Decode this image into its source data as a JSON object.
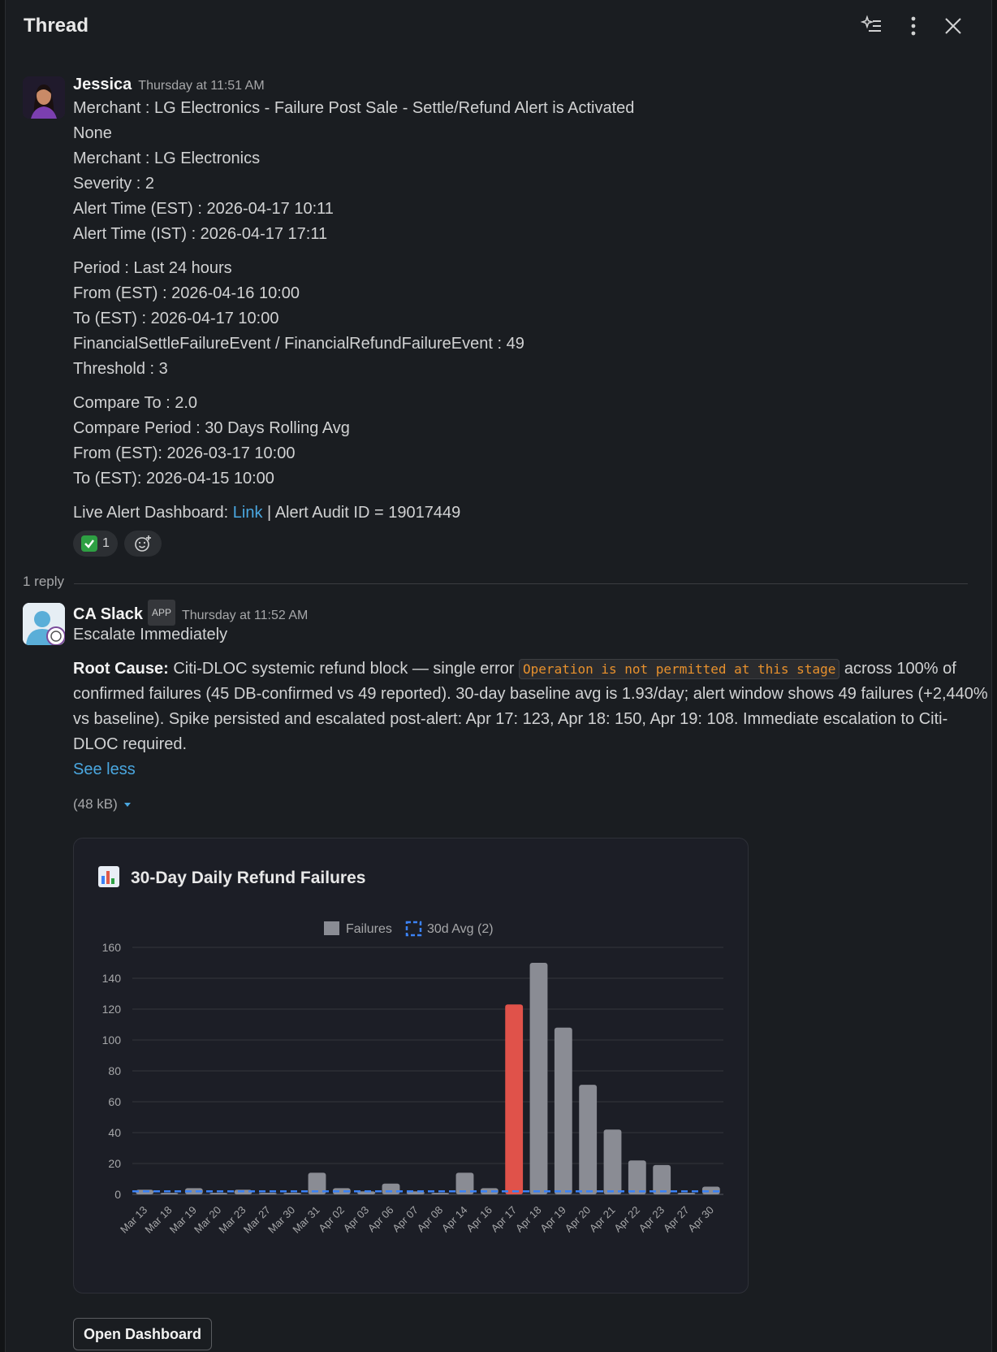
{
  "header": {
    "title": "Thread"
  },
  "message1": {
    "author": "Jessica",
    "timestamp": "Thursday at 11:51 AM",
    "lines": [
      "Merchant : LG Electronics - Failure Post Sale - Settle/Refund Alert is Activated",
      "None",
      "Merchant : LG Electronics",
      "Severity : 2",
      "Alert Time (EST) : 2026-04-17 10:11",
      "Alert Time (IST) : 2026-04-17 17:11"
    ],
    "period_lines": [
      "Period : Last 24 hours",
      "From (EST) : 2026-04-16 10:00",
      "To (EST) : 2026-04-17 10:00",
      "FinancialSettleFailureEvent / FinancialRefundFailureEvent : 49",
      "Threshold : 3"
    ],
    "compare_lines": [
      "Compare To : 2.0",
      "Compare Period :  30 Days Rolling Avg",
      "From (EST): 2026-03-17 10:00",
      "To (EST): 2026-04-15 10:00"
    ],
    "dashboard_prefix": "Live Alert Dashboard: ",
    "dashboard_link": "Link",
    "dashboard_suffix": " | Alert Audit ID = 19017449",
    "reaction_count": "1"
  },
  "reply_count": "1 reply",
  "message2": {
    "author": "CA Slack",
    "badge": "APP",
    "timestamp": "Thursday at 11:52 AM",
    "headline": "Escalate Immediately",
    "root_cause_label": "Root Cause:",
    "root_cause_pre": " Citi-DLOC systemic refund block — single error ",
    "root_cause_code": "Operation is not permitted at this stage",
    "root_cause_post": " across 100% of confirmed failures (45 DB-confirmed vs 49 reported). 30-day baseline avg is 1.93/day; alert window shows 49 failures (+2,440% vs baseline). Spike persisted and escalated post-alert: Apr 17: 123, Apr 18: 150, Apr 19: 108. Immediate escalation to Citi-DLOC required.",
    "see_less": "See less",
    "file_size": "(48 kB)",
    "open_dashboard": "Open Dashboard"
  },
  "chart_data": {
    "type": "bar",
    "title": "30-Day Daily Refund Failures",
    "title_icon": "bar-chart-icon",
    "legend": [
      "Failures",
      "30d Avg (2)"
    ],
    "legend_position": "top",
    "categories": [
      "Mar 13",
      "Mar 18",
      "Mar 19",
      "Mar 20",
      "Mar 23",
      "Mar 27",
      "Mar 30",
      "Mar 31",
      "Apr 02",
      "Apr 03",
      "Apr 06",
      "Apr 07",
      "Apr 08",
      "Apr 14",
      "Apr 16",
      "Apr 17",
      "Apr 18",
      "Apr 19",
      "Apr 20",
      "Apr 21",
      "Apr 22",
      "Apr 23",
      "Apr 27",
      "Apr 30"
    ],
    "values": [
      3,
      1,
      4,
      1,
      3,
      1,
      1,
      14,
      4,
      2,
      7,
      2,
      1,
      14,
      4,
      123,
      150,
      108,
      71,
      42,
      22,
      19,
      1,
      5
    ],
    "highlight_category": "Apr 17",
    "avg_line": 2,
    "ylim": [
      0,
      160
    ],
    "yticks": [
      0,
      20,
      40,
      60,
      80,
      100,
      120,
      140,
      160
    ],
    "grid": true,
    "colors": {
      "bar": "#8a8c94",
      "highlight": "#e0524a",
      "avg": "#3b82f6"
    }
  }
}
